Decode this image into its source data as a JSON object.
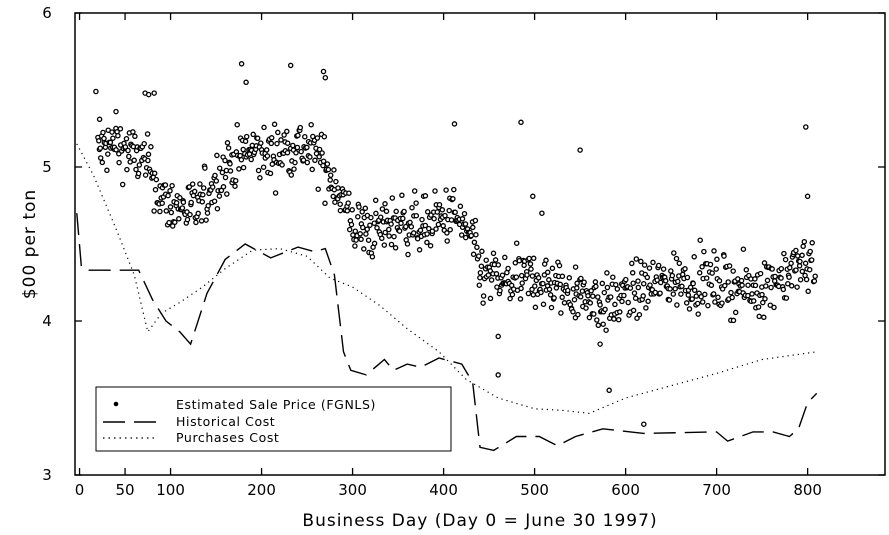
{
  "chart_data": {
    "type": "scatter",
    "title": "",
    "xlabel": "Business Day (Day 0 = June 30 1997)",
    "ylabel": "$00 per ton",
    "xlim": [
      -5,
      885
    ],
    "ylim": [
      3,
      6
    ],
    "x_ticks": [
      0,
      50,
      100,
      200,
      300,
      400,
      500,
      600,
      700,
      800
    ],
    "y_ticks": [
      3,
      4,
      5,
      6
    ],
    "grid": false,
    "legend_position": "bottom-left",
    "series": [
      {
        "name": "Estimated Sale Price (FGNLS)",
        "kind": "points",
        "color": "#000000",
        "anchors": [
          [
            20,
            5.1
          ],
          [
            40,
            5.15
          ],
          [
            60,
            5.08
          ],
          [
            80,
            4.98
          ],
          [
            85,
            4.85
          ],
          [
            95,
            4.76
          ],
          [
            110,
            4.74
          ],
          [
            130,
            4.72
          ],
          [
            150,
            4.92
          ],
          [
            165,
            5.02
          ],
          [
            185,
            5.1
          ],
          [
            210,
            5.08
          ],
          [
            240,
            5.15
          ],
          [
            265,
            5.05
          ],
          [
            285,
            4.85
          ],
          [
            300,
            4.62
          ],
          [
            320,
            4.58
          ],
          [
            350,
            4.65
          ],
          [
            380,
            4.62
          ],
          [
            410,
            4.7
          ],
          [
            430,
            4.55
          ],
          [
            440,
            4.3
          ],
          [
            470,
            4.25
          ],
          [
            500,
            4.28
          ],
          [
            530,
            4.2
          ],
          [
            560,
            4.16
          ],
          [
            580,
            4.1
          ],
          [
            620,
            4.22
          ],
          [
            660,
            4.27
          ],
          [
            700,
            4.25
          ],
          [
            740,
            4.2
          ],
          [
            780,
            4.32
          ],
          [
            808,
            4.38
          ]
        ],
        "noise": 0.09,
        "outliers": [
          [
            18,
            5.49
          ],
          [
            22,
            5.31
          ],
          [
            40,
            5.36
          ],
          [
            72,
            5.48
          ],
          [
            82,
            5.48
          ],
          [
            76,
            5.47
          ],
          [
            178,
            5.67
          ],
          [
            232,
            5.66
          ],
          [
            268,
            5.62
          ],
          [
            270,
            5.58
          ],
          [
            183,
            5.55
          ],
          [
            412,
            5.28
          ],
          [
            485,
            5.29
          ],
          [
            550,
            5.11
          ],
          [
            498,
            4.81
          ],
          [
            798,
            5.26
          ],
          [
            460,
            3.9
          ],
          [
            460,
            3.65
          ],
          [
            572,
            3.85
          ],
          [
            582,
            3.55
          ],
          [
            620,
            3.33
          ],
          [
            800,
            4.81
          ],
          [
            545,
            4.35
          ],
          [
            508,
            4.7
          ]
        ]
      },
      {
        "name": "Historical Cost",
        "kind": "dashed-line",
        "color": "#000000",
        "points": [
          [
            -3,
            4.7
          ],
          [
            2,
            4.35
          ],
          [
            10,
            4.33
          ],
          [
            30,
            4.33
          ],
          [
            55,
            4.33
          ],
          [
            65,
            4.33
          ],
          [
            80,
            4.14
          ],
          [
            95,
            4.0
          ],
          [
            110,
            3.93
          ],
          [
            122,
            3.85
          ],
          [
            140,
            4.18
          ],
          [
            160,
            4.4
          ],
          [
            182,
            4.5
          ],
          [
            210,
            4.41
          ],
          [
            240,
            4.48
          ],
          [
            258,
            4.45
          ],
          [
            270,
            4.47
          ],
          [
            280,
            4.3
          ],
          [
            290,
            3.8
          ],
          [
            298,
            3.68
          ],
          [
            315,
            3.65
          ],
          [
            335,
            3.75
          ],
          [
            345,
            3.68
          ],
          [
            360,
            3.72
          ],
          [
            375,
            3.7
          ],
          [
            395,
            3.76
          ],
          [
            420,
            3.72
          ],
          [
            432,
            3.6
          ],
          [
            440,
            3.18
          ],
          [
            455,
            3.16
          ],
          [
            480,
            3.25
          ],
          [
            505,
            3.25
          ],
          [
            525,
            3.19
          ],
          [
            545,
            3.25
          ],
          [
            575,
            3.3
          ],
          [
            620,
            3.27
          ],
          [
            700,
            3.28
          ],
          [
            712,
            3.22
          ],
          [
            740,
            3.28
          ],
          [
            762,
            3.28
          ],
          [
            780,
            3.25
          ],
          [
            790,
            3.3
          ],
          [
            800,
            3.47
          ],
          [
            810,
            3.53
          ]
        ]
      },
      {
        "name": "Purchases Cost",
        "kind": "dotted-line",
        "color": "#000000",
        "points": [
          [
            -3,
            5.15
          ],
          [
            15,
            4.95
          ],
          [
            40,
            4.6
          ],
          [
            60,
            4.3
          ],
          [
            75,
            3.93
          ],
          [
            90,
            4.05
          ],
          [
            110,
            4.12
          ],
          [
            135,
            4.22
          ],
          [
            160,
            4.34
          ],
          [
            190,
            4.46
          ],
          [
            220,
            4.47
          ],
          [
            250,
            4.42
          ],
          [
            275,
            4.28
          ],
          [
            300,
            4.22
          ],
          [
            330,
            4.1
          ],
          [
            360,
            3.95
          ],
          [
            395,
            3.8
          ],
          [
            425,
            3.62
          ],
          [
            460,
            3.5
          ],
          [
            500,
            3.43
          ],
          [
            530,
            3.42
          ],
          [
            560,
            3.4
          ],
          [
            600,
            3.5
          ],
          [
            650,
            3.58
          ],
          [
            700,
            3.66
          ],
          [
            750,
            3.75
          ],
          [
            810,
            3.8
          ]
        ]
      }
    ]
  }
}
